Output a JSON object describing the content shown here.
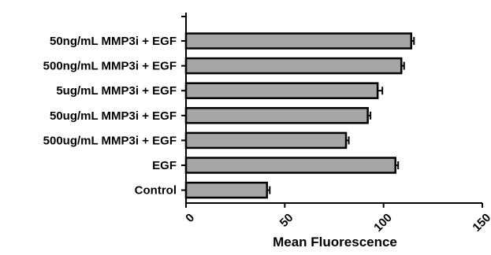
{
  "chart_data": {
    "type": "bar",
    "orientation": "horizontal",
    "categories": [
      "50ng/mL MMP3i + EGF",
      "500ng/mL MMP3i + EGF",
      "5ug/mL MMP3i + EGF",
      "50ug/mL MMP3i + EGF",
      "500ug/mL MMP3i + EGF",
      "EGF",
      "Control"
    ],
    "values": [
      114,
      109,
      97,
      92,
      81,
      106,
      41
    ],
    "errors": [
      1,
      1,
      2,
      1,
      1,
      1,
      1
    ],
    "xlabel": "Mean  Fluorescence",
    "xlim": [
      0,
      150
    ],
    "xticks": [
      "0",
      "50",
      "100",
      "150"
    ],
    "bar_color": "#a6a6a6",
    "bar_outline_color": "#000000",
    "grid": false
  }
}
